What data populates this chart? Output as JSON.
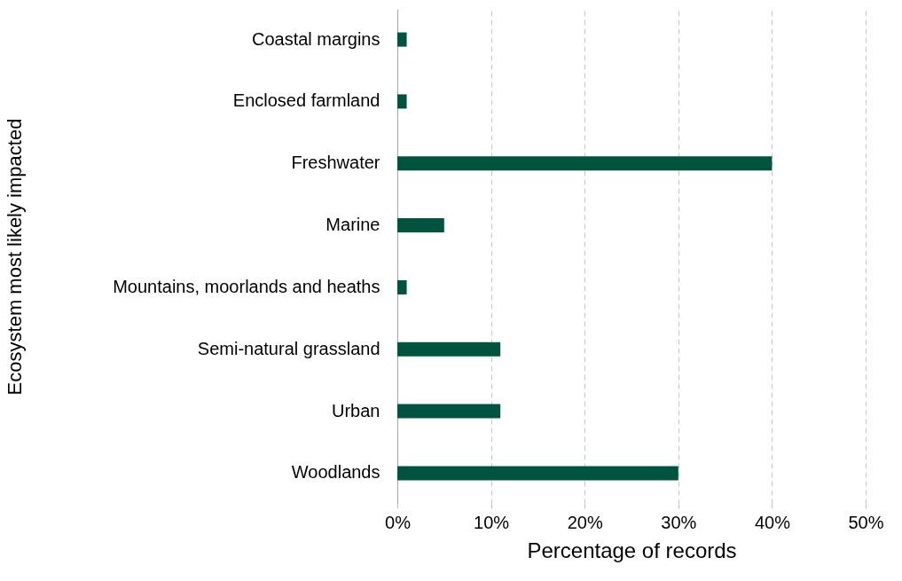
{
  "chart_data": {
    "type": "bar",
    "orientation": "horizontal",
    "categories": [
      "Coastal margins",
      "Enclosed farmland",
      "Freshwater",
      "Marine",
      "Mountains, moorlands and heaths",
      "Semi-natural grassland",
      "Urban",
      "Woodlands"
    ],
    "values": [
      1,
      1,
      40,
      5,
      1,
      11,
      11,
      30
    ],
    "color": "#00533f",
    "xlabel": "Percentage of records",
    "ylabel": "Ecosystem most likely impacted",
    "xlim": [
      0,
      50
    ],
    "xticks": [
      {
        "value": 0,
        "label": "0%"
      },
      {
        "value": 10,
        "label": "10%"
      },
      {
        "value": 20,
        "label": "20%"
      },
      {
        "value": 30,
        "label": "30%"
      },
      {
        "value": 40,
        "label": "40%"
      },
      {
        "value": 50,
        "label": "50%"
      }
    ],
    "grid": "x"
  }
}
